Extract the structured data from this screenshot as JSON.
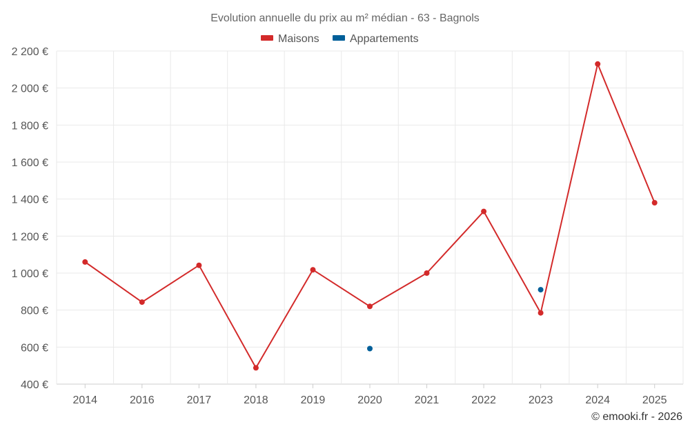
{
  "chart_data": {
    "type": "line",
    "title": "Evolution annuelle du prix au m² médian - 63 - Bagnols",
    "categories": [
      "2014",
      "2016",
      "2017",
      "2018",
      "2019",
      "2020",
      "2021",
      "2022",
      "2023",
      "2024",
      "2025"
    ],
    "series": [
      {
        "name": "Maisons",
        "color": "#d32a2a",
        "style": "line",
        "values": [
          1060,
          843,
          1042,
          488,
          1018,
          820,
          1000,
          1333,
          785,
          2130,
          1380
        ]
      },
      {
        "name": "Appartements",
        "color": "#005f99",
        "style": "points",
        "values": [
          null,
          null,
          null,
          null,
          null,
          592,
          null,
          null,
          910,
          null,
          null
        ]
      }
    ],
    "ylim": [
      400,
      2200
    ],
    "yticks": [
      400,
      600,
      800,
      1000,
      1200,
      1400,
      1600,
      1800,
      2000,
      2200
    ],
    "ytick_labels": [
      "400 €",
      "600 €",
      "800 €",
      "1 000 €",
      "1 200 €",
      "1 400 €",
      "1 600 €",
      "1 800 €",
      "2 000 €",
      "2 200 €"
    ],
    "xlabel": "",
    "ylabel": "",
    "grid": true,
    "legend_position": "top-center"
  },
  "credit": "© emooki.fr - 2026"
}
